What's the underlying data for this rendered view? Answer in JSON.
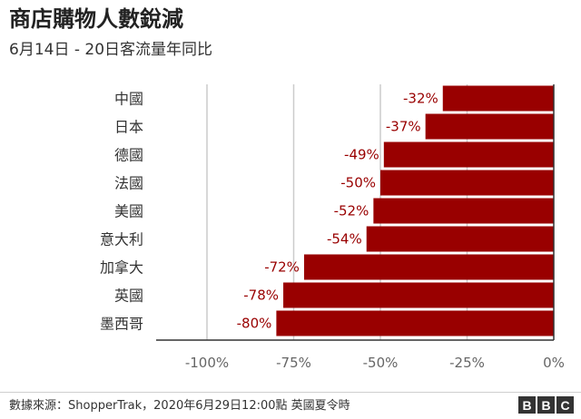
{
  "title": "商店購物人數銳減",
  "subtitle": "6月14日 - 20日客流量年同比",
  "source": "數據來源：ShopperTrak，2020年6月29日12:00點 英國夏令時",
  "brand": {
    "letters": [
      "B",
      "B",
      "C"
    ]
  },
  "colors": {
    "bar": "#990000",
    "label": "#990000",
    "grid": "#cccccc",
    "axis": "#333333",
    "tick": "#666666"
  },
  "chart_data": {
    "type": "bar",
    "orientation": "horizontal",
    "categories": [
      "中國",
      "日本",
      "德國",
      "法國",
      "美國",
      "意大利",
      "加拿大",
      "英國",
      "墨西哥"
    ],
    "values": [
      -32,
      -37,
      -49,
      -50,
      -52,
      -54,
      -72,
      -78,
      -80
    ],
    "value_labels": [
      "-32%",
      "-37%",
      "-49%",
      "-50%",
      "-52%",
      "-54%",
      "-72%",
      "-78%",
      "-80%"
    ],
    "xlim": [
      -100,
      0
    ],
    "xticks": [
      -100,
      -75,
      -50,
      -25,
      0
    ],
    "xtick_labels": [
      "-100%",
      "-75%",
      "-50%",
      "-25%",
      "0%"
    ],
    "grid": true
  }
}
